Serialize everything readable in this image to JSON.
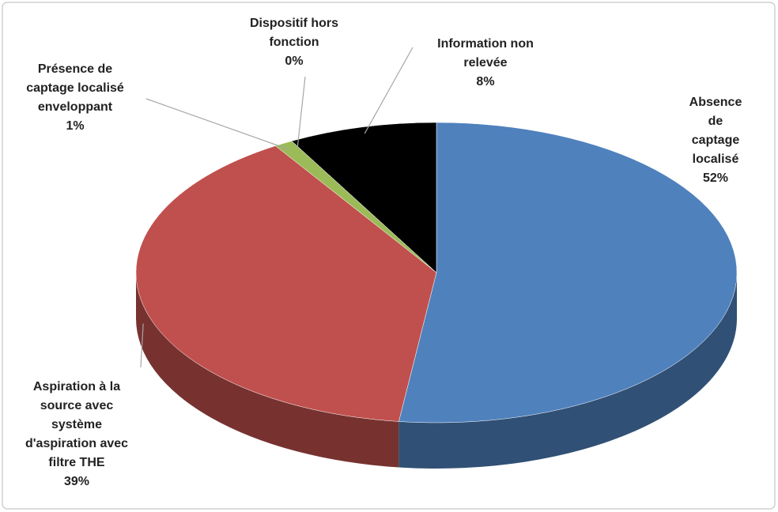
{
  "chart_data": {
    "type": "pie",
    "categories": [
      "Absence de\ncaptage localisé",
      "Aspiration à la\nsource avec\nsystème\nd'aspiration avec\nfiltre THE",
      "Présence de\ncaptage localisé\nenveloppant",
      "Dispositif hors\nfonction",
      "Information non\nrelevée"
    ],
    "values": [
      52,
      39,
      1,
      0,
      8
    ],
    "value_labels": [
      "52%",
      "39%",
      "1%",
      "0%",
      "8%"
    ],
    "colors": [
      "#4f81bd",
      "#c0504d",
      "#9bbb59",
      "#8064a2",
      "#000000"
    ]
  }
}
